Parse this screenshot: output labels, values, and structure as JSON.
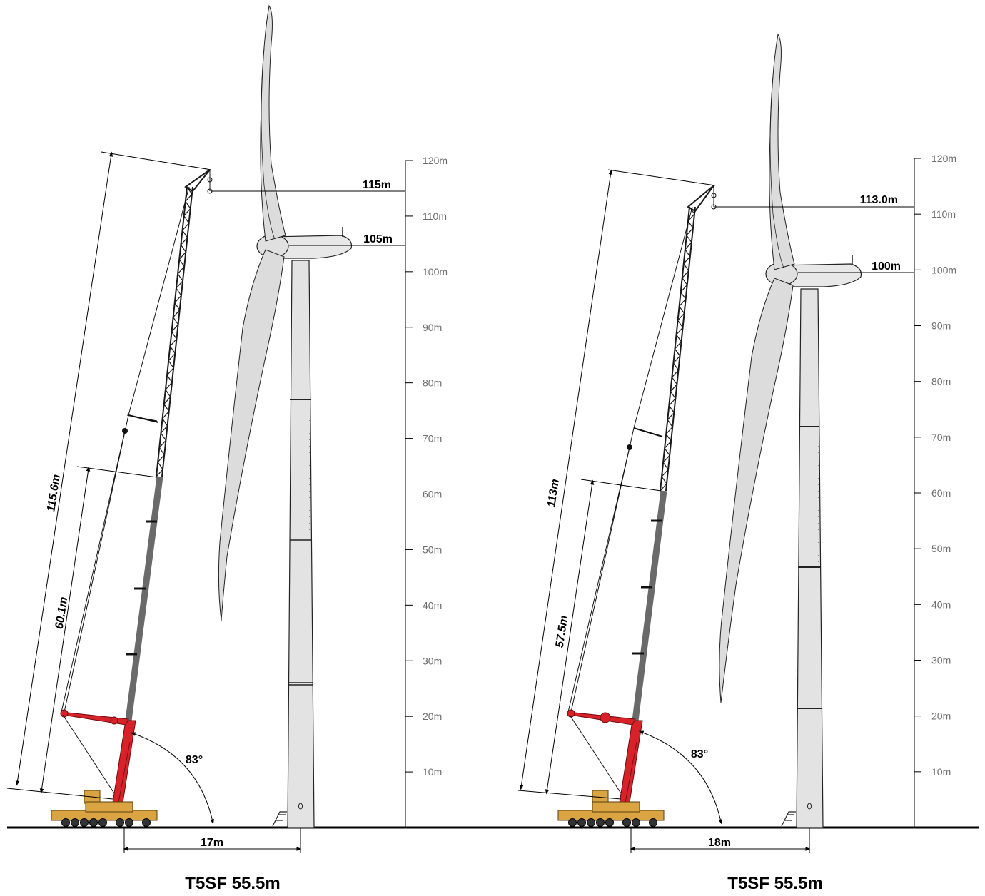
{
  "scale_labels": [
    "10m",
    "20m",
    "30m",
    "40m",
    "50m",
    "60m",
    "70m",
    "80m",
    "90m",
    "100m",
    "110m",
    "120m"
  ],
  "left": {
    "hook_height": "115m",
    "hub_height": "105m",
    "boom_length": "115.6m",
    "main_boom": "60.1m",
    "angle": "83°",
    "radius": "17m",
    "caption": "T5SF 55.5m"
  },
  "right": {
    "hook_height": "113.0m",
    "hub_height": "100m",
    "boom_length": "113m",
    "main_boom": "57.5m",
    "angle": "83°",
    "radius": "18m",
    "caption": "T5SF 55.5m"
  },
  "colors": {
    "boom_red": "#d8222a",
    "boom_dark": "#6a6a6a",
    "lattice": "#1a1a1a",
    "carrier": "#d9a441",
    "tower": "#e3e3e3",
    "blade": "#dcdcdc"
  }
}
